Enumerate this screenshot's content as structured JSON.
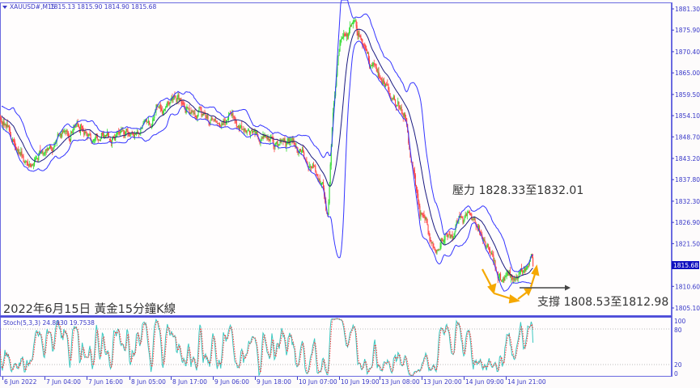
{
  "header": {
    "symbol": "XAUUSD#,M15",
    "ohlc": "1815.13 1815.90 1814.90 1815.68"
  },
  "current_price_label": "1815.68",
  "colors": {
    "bull": "#33dd33",
    "bear": "#ff4444",
    "bands": "#3434ff",
    "band_mid": "#1a1a80",
    "axis": "#3838c8",
    "stoch_main": "#3cc8c0",
    "stoch_signal": "#ff3030",
    "arrow_orange": "#f5a800",
    "arrow_gray": "#444444"
  },
  "annotations": {
    "title": "2022年6月15日 黃金15分鐘K線",
    "resistance": "壓力 1828.33至1832.01",
    "support": "支撐 1808.53至1812.98"
  },
  "stochastic": {
    "label": "Stoch(5,3,3) 24.8930 19.7538",
    "levels": [
      "100",
      "80",
      "20",
      "0"
    ]
  },
  "chart_data": {
    "type": "candlestick",
    "indicators": [
      "Bollinger Bands",
      "Stochastic(5,3,3)"
    ],
    "price_ticks": [
      "1881.30",
      "1875.90",
      "1870.40",
      "1865.00",
      "1859.50",
      "1854.10",
      "1848.70",
      "1843.20",
      "1837.80",
      "1832.30",
      "1826.90",
      "1821.50",
      "1810.60",
      "1805.10"
    ],
    "time_ticks": [
      "6 Jun 2022",
      "7 Jun 04:00",
      "7 Jun 16:00",
      "8 Jun 05:00",
      "8 Jun 17:00",
      "9 Jun 06:00",
      "9 Jun 18:00",
      "10 Jun 07:00",
      "10 Jun 19:00",
      "13 Jun 08:00",
      "13 Jun 20:00",
      "14 Jun 09:00",
      "14 Jun 21:00"
    ],
    "ylim": [
      1805.1,
      1881.3
    ],
    "grid": false,
    "approx_close_trace": [
      [
        "6 Jun 14:00",
        1854.7
      ],
      [
        "6 Jun 18:00",
        1848.6
      ],
      [
        "7 Jun 00:15",
        1840.3
      ],
      [
        "7 Jun 05:15",
        1845.5
      ],
      [
        "7 Jun 14:30",
        1851.6
      ],
      [
        "8 Jun 00:15",
        1847.5
      ],
      [
        "8 Jun 07:15",
        1850.6
      ],
      [
        "8 Jun 18:00",
        1857.8
      ],
      [
        "9 Jun 00:15",
        1852.7
      ],
      [
        "9 Jun 10:00",
        1851.6
      ],
      [
        "9 Jun 19:15",
        1848.6
      ],
      [
        "10 Jun 10:00",
        1844.4
      ],
      [
        "10 Jun 14:30",
        1836.2
      ],
      [
        "10 Jun 15:45",
        1827.9
      ],
      [
        "10 Jun 17:15",
        1856.8
      ],
      [
        "10 Jun 19:15",
        1873.3
      ],
      [
        "13 Jun 00:15",
        1877.4
      ],
      [
        "13 Jun 05:15",
        1867.1
      ],
      [
        "13 Jun 10:15",
        1860.9
      ],
      [
        "13 Jun 15:00",
        1854.7
      ],
      [
        "13 Jun 17:15",
        1842.4
      ],
      [
        "13 Jun 19:30",
        1827.9
      ],
      [
        "14 Jun 00:30",
        1821.8
      ],
      [
        "14 Jun 05:30",
        1825.9
      ],
      [
        "14 Jun 10:30",
        1830.0
      ],
      [
        "14 Jun 15:00",
        1821.8
      ],
      [
        "14 Jun 19:30",
        1813.5
      ],
      [
        "15 Jun 00:15",
        1810.5
      ],
      [
        "15 Jun 03:45",
        1815.6
      ],
      [
        "15 Jun 04:45",
        1815.68
      ]
    ]
  }
}
